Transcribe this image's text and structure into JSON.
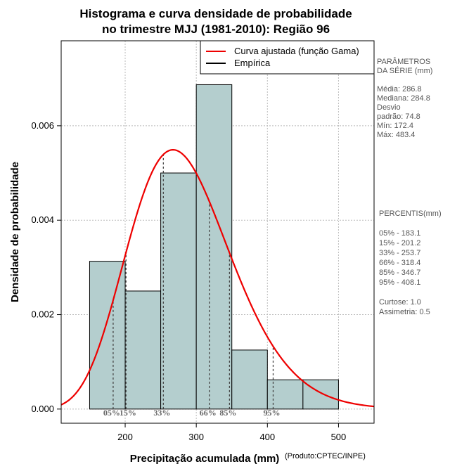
{
  "chart_data": {
    "type": "histogram",
    "title_line1": "Histograma e curva densidade de probabilidade",
    "title_line2": "no trimestre MJJ (1981-2010): Região 96",
    "xlabel": "Precipitação acumulada (mm)",
    "ylabel": "Densidade de probabilidade",
    "credit": "(Produto:CPTEC/INPE)",
    "xlim": [
      110,
      550
    ],
    "ylim": [
      -0.0003,
      0.0078
    ],
    "x_ticks": [
      200,
      300,
      400,
      500
    ],
    "x_tick_labels": [
      "200",
      "300",
      "400",
      "500"
    ],
    "y_ticks": [
      0.0,
      0.002,
      0.004,
      0.006
    ],
    "y_tick_labels": [
      "0.000",
      "0.002",
      "0.004",
      "0.006"
    ],
    "bins": [
      {
        "start": 150,
        "end": 200,
        "density": 0.00313
      },
      {
        "start": 200,
        "end": 250,
        "density": 0.0025
      },
      {
        "start": 250,
        "end": 300,
        "density": 0.005
      },
      {
        "start": 300,
        "end": 350,
        "density": 0.00687
      },
      {
        "start": 350,
        "end": 400,
        "density": 0.00125
      },
      {
        "start": 400,
        "end": 450,
        "density": 0.00062
      },
      {
        "start": 450,
        "end": 500,
        "density": 0.00062
      }
    ],
    "gamma_fit": {
      "mean": 286.8,
      "sd": 74.8
    },
    "bar_color": "#b4cece",
    "curve_color": "#ee0000",
    "legend": [
      {
        "label": "Curva ajustada (função Gama)",
        "color": "#ee0000"
      },
      {
        "label": "Empírica",
        "color": "#000000"
      }
    ],
    "percentile_markers": [
      {
        "label": "05%",
        "value": 183.1
      },
      {
        "label": "15%",
        "value": 201.2
      },
      {
        "label": "33%",
        "value": 253.7
      },
      {
        "label": "66%",
        "value": 318.4
      },
      {
        "label": "85%",
        "value": 346.7
      },
      {
        "label": "95%",
        "value": 408.1
      }
    ]
  },
  "side_panel": {
    "params_lines": [
      "PARÂMETROS",
      " DA SÉRIE (mm)",
      "",
      "Média:  286.8",
      "Mediana:  284.8",
      "Desvio",
      "padrão:  74.8",
      "Mín:  172.4",
      "Máx:  483.4"
    ],
    "percentis_lines": [
      " PERCENTIS(mm)",
      "",
      "05% -  183.1",
      "15% -  201.2",
      "33% -  253.7",
      "66% -  318.4",
      "85% -  346.7",
      "95% -  408.1",
      "",
      "Curtose:  1.0",
      "Assimetria:  0.5"
    ]
  }
}
